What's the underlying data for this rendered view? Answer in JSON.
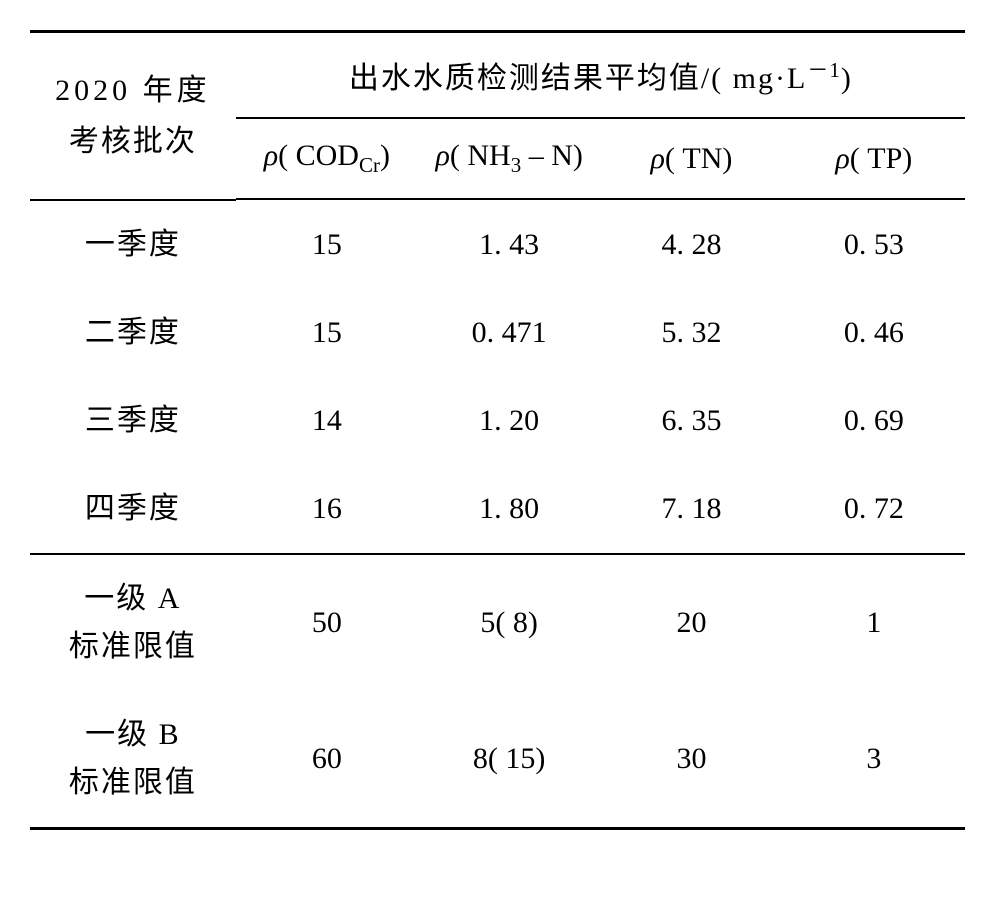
{
  "table": {
    "type": "table",
    "background_color": "#ffffff",
    "text_color": "#000000",
    "header_left_line1": "2020 年度",
    "header_left_line2": "考核批次",
    "header_top": "出水水质检测结果平均值/( mg·L",
    "header_top_sup": "－1",
    "header_top_close": ")",
    "columns": {
      "c1_pre": "ρ",
      "c1_mid": "( COD",
      "c1_sub": "Cr",
      "c1_post": ")",
      "c2_pre": "ρ",
      "c2_mid": "( NH",
      "c2_sub": "3",
      "c2_post": " – N)",
      "c3_pre": "ρ",
      "c3_mid": "( TN)",
      "c4_pre": "ρ",
      "c4_mid": "( TP)"
    },
    "rows": [
      {
        "label": "一季度",
        "v1": "15",
        "v2": "1. 43",
        "v3": "4. 28",
        "v4": "0. 53"
      },
      {
        "label": "二季度",
        "v1": "15",
        "v2": "0. 471",
        "v3": "5. 32",
        "v4": "0. 46"
      },
      {
        "label": "三季度",
        "v1": "14",
        "v2": "1. 20",
        "v3": "6. 35",
        "v4": "0. 69"
      },
      {
        "label": "四季度",
        "v1": "16",
        "v2": "1. 80",
        "v3": "7. 18",
        "v4": "0. 72"
      }
    ],
    "std_rows": [
      {
        "l1": "一级 A",
        "l2": "标准限值",
        "v1": "50",
        "v2": "5( 8)",
        "v3": "20",
        "v4": "1"
      },
      {
        "l1": "一级 B",
        "l2": "标准限值",
        "v1": "60",
        "v2": "8( 15)",
        "v3": "30",
        "v4": "3"
      }
    ]
  }
}
